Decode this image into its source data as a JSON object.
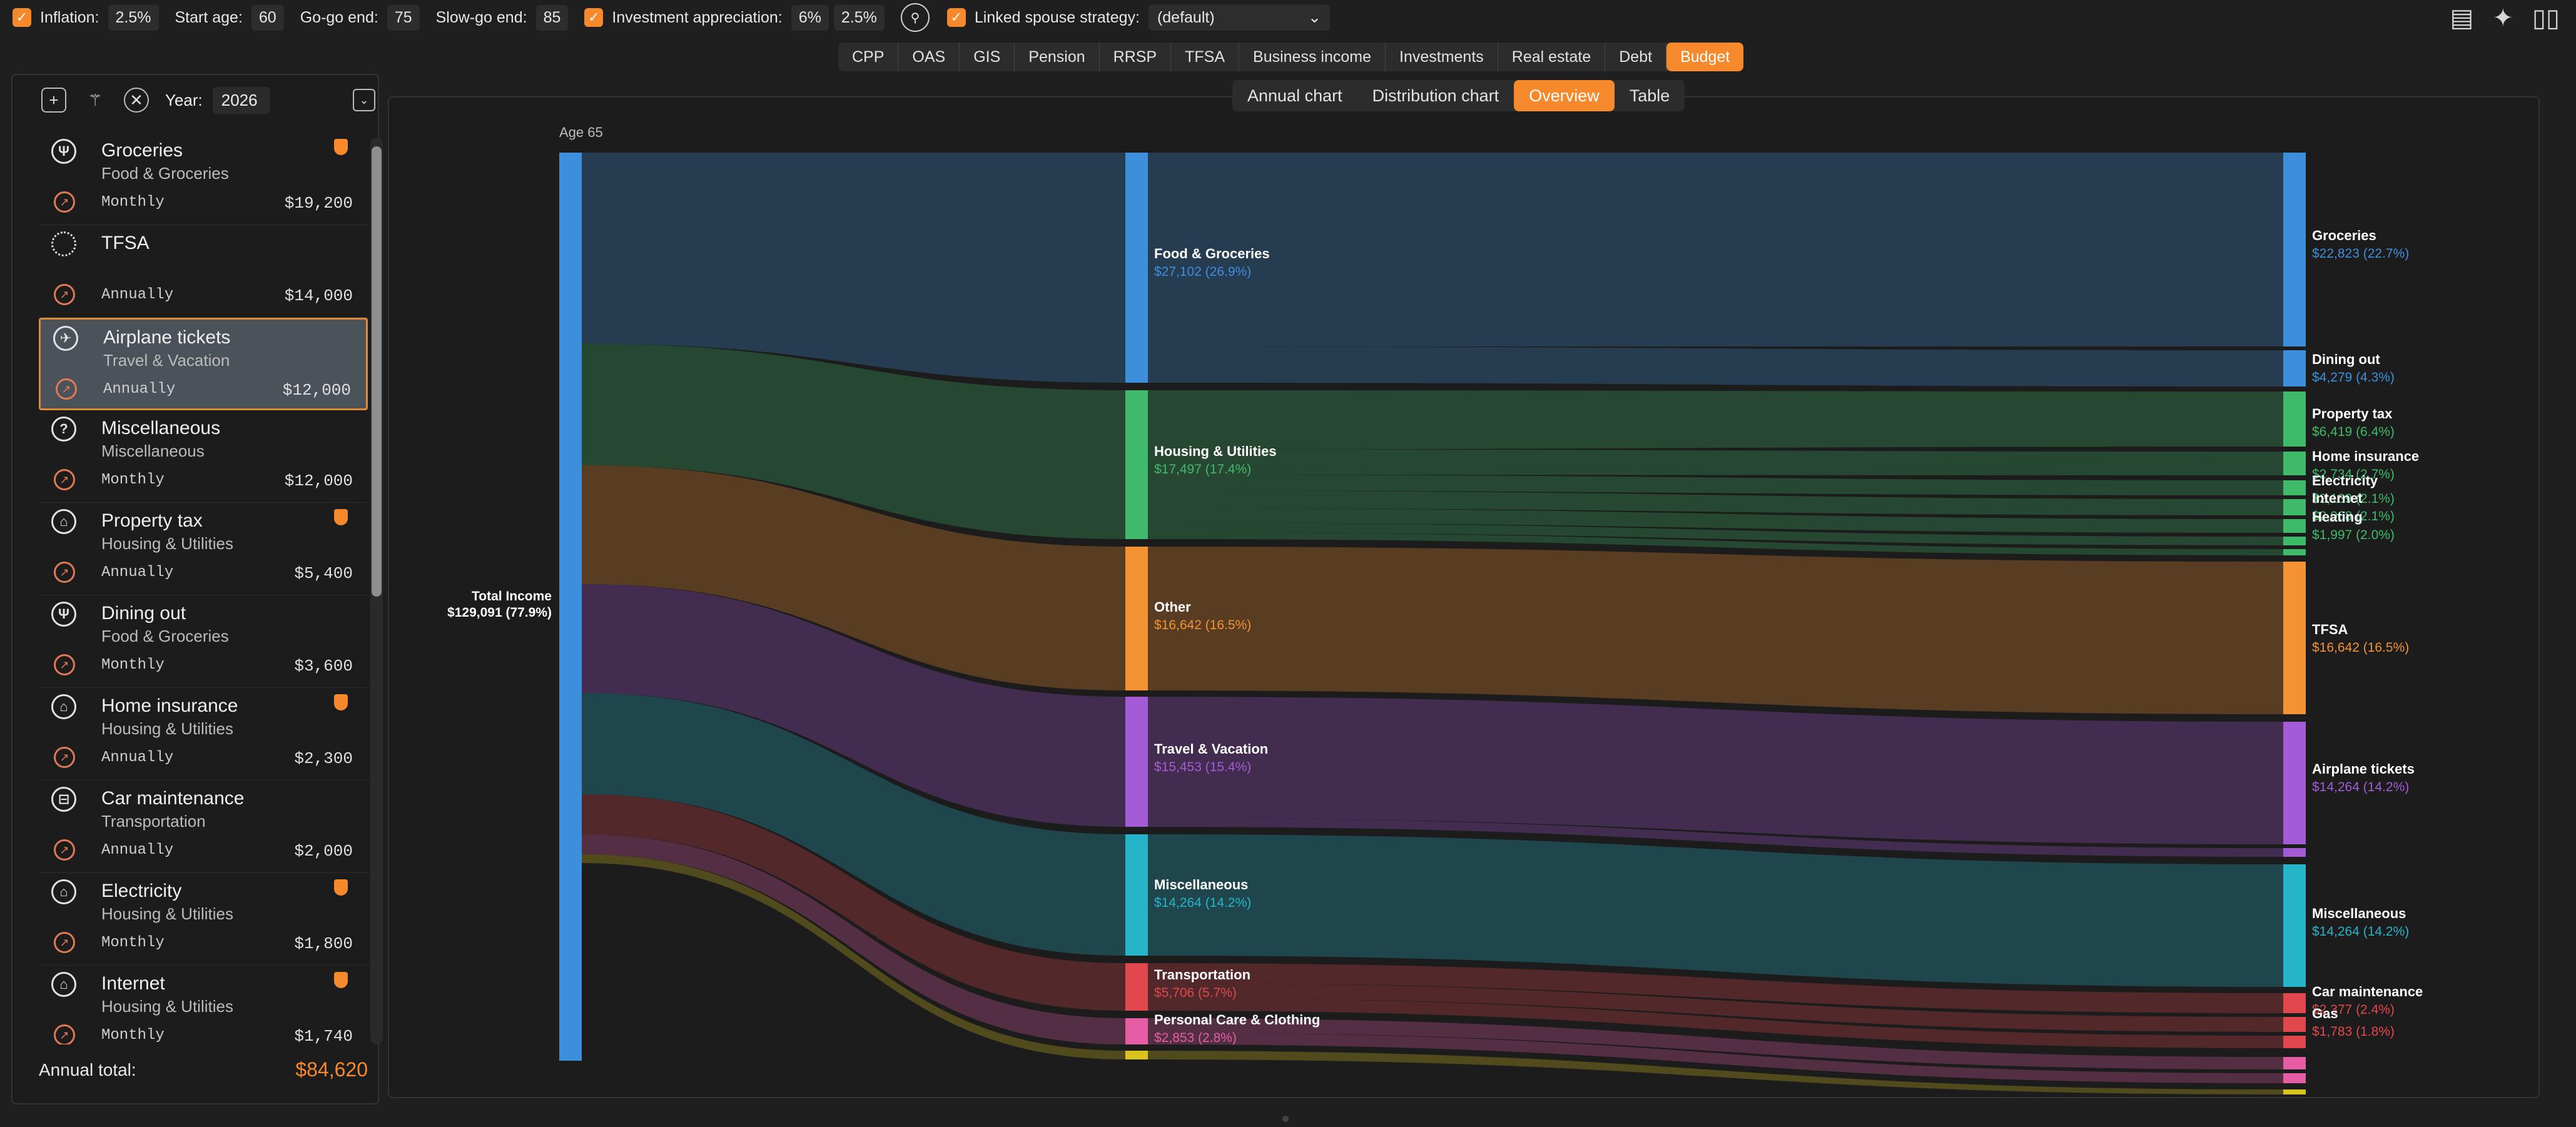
{
  "toolbar": {
    "inflation_label": "Inflation:",
    "inflation_value": "2.5%",
    "start_age_label": "Start age:",
    "start_age_value": "60",
    "gogo_label": "Go-go end:",
    "gogo_value": "75",
    "slowgo_label": "Slow-go end:",
    "slowgo_value": "85",
    "investment_label": "Investment appreciation:",
    "investment_value_1": "6%",
    "investment_value_2": "2.5%",
    "spouse_label": "Linked spouse strategy:",
    "spouse_value": "(default)"
  },
  "tabs": [
    "CPP",
    "OAS",
    "GIS",
    "Pension",
    "RRSP",
    "TFSA",
    "Business income",
    "Investments",
    "Real estate",
    "Debt",
    "Budget"
  ],
  "active_tab": "Budget",
  "left_panel": {
    "year_label": "Year:",
    "year_value": "2026",
    "items": [
      {
        "name": "Groceries",
        "category": "Food & Groceries",
        "frequency": "Monthly",
        "amount": "$19,200",
        "icon": "utensils-icon",
        "badge": true
      },
      {
        "name": "TFSA",
        "category": "",
        "frequency": "Annually",
        "amount": "$14,000",
        "icon": "dotted-circle-icon",
        "badge": false
      },
      {
        "name": "Airplane tickets",
        "category": "Travel & Vacation",
        "frequency": "Annually",
        "amount": "$12,000",
        "icon": "airplane-icon",
        "badge": false,
        "selected": true
      },
      {
        "name": "Miscellaneous",
        "category": "Miscellaneous",
        "frequency": "Monthly",
        "amount": "$12,000",
        "icon": "question-icon",
        "badge": false
      },
      {
        "name": "Property tax",
        "category": "Housing & Utilities",
        "frequency": "Annually",
        "amount": "$5,400",
        "icon": "house-icon",
        "badge": true
      },
      {
        "name": "Dining out",
        "category": "Food & Groceries",
        "frequency": "Monthly",
        "amount": "$3,600",
        "icon": "utensils-icon",
        "badge": false
      },
      {
        "name": "Home insurance",
        "category": "Housing & Utilities",
        "frequency": "Annually",
        "amount": "$2,300",
        "icon": "house-icon",
        "badge": true
      },
      {
        "name": "Car maintenance",
        "category": "Transportation",
        "frequency": "Annually",
        "amount": "$2,000",
        "icon": "car-icon",
        "badge": false
      },
      {
        "name": "Electricity",
        "category": "Housing & Utilities",
        "frequency": "Monthly",
        "amount": "$1,800",
        "icon": "house-icon",
        "badge": true
      },
      {
        "name": "Internet",
        "category": "Housing & Utilities",
        "frequency": "Monthly",
        "amount": "$1,740",
        "icon": "house-icon",
        "badge": true
      }
    ],
    "annual_total_label": "Annual total:",
    "annual_total_value": "$84,620"
  },
  "subtabs": [
    "Annual chart",
    "Distribution chart",
    "Overview",
    "Table"
  ],
  "active_subtab": "Overview",
  "colors": {
    "accent": "#f5892b",
    "income": "#3d8fdc",
    "food": "#3d8fdc",
    "housing": "#3fb96a",
    "other": "#f39233",
    "travel": "#a45bd6",
    "misc": "#26b4c8",
    "transport": "#e0484e",
    "personal": "#e55ea5",
    "yellow": "#d7c21e"
  },
  "chart_data": {
    "type": "sankey",
    "title": "Age 65",
    "source": {
      "label": "Total Income",
      "value": "$129,091 (77.9%)"
    },
    "categories": [
      {
        "label": "Food & Groceries",
        "value": "$27,102 (26.9%)",
        "color": "#3d8fdc"
      },
      {
        "label": "Housing & Utilities",
        "value": "$17,497 (17.4%)",
        "color": "#3fb96a"
      },
      {
        "label": "Other",
        "value": "$16,642 (16.5%)",
        "color": "#f39233"
      },
      {
        "label": "Travel & Vacation",
        "value": "$15,453 (15.4%)",
        "color": "#a45bd6"
      },
      {
        "label": "Miscellaneous",
        "value": "$14,264 (14.2%)",
        "color": "#26b4c8"
      },
      {
        "label": "Transportation",
        "value": "$5,706 (5.7%)",
        "color": "#e0484e"
      },
      {
        "label": "Personal Care & Clothing",
        "value": "$2,853 (2.8%)",
        "color": "#e55ea5"
      },
      {
        "label": "",
        "value": "",
        "color": "#d7c21e"
      }
    ],
    "targets": [
      {
        "label": "Groceries",
        "value": "$22,823 (22.7%)",
        "color": "#3d8fdc"
      },
      {
        "label": "Dining out",
        "value": "$4,279 (4.3%)",
        "color": "#3d8fdc"
      },
      {
        "label": "Property tax",
        "value": "$6,419 (6.4%)",
        "color": "#3fb96a"
      },
      {
        "label": "Home insurance",
        "value": "$2,734 (2.7%)",
        "color": "#3fb96a"
      },
      {
        "label": "Electricity",
        "value": "$2,139 (2.1%)",
        "color": "#3fb96a"
      },
      {
        "label": "Internet",
        "value": "$2,068 (2.1%)",
        "color": "#3fb96a"
      },
      {
        "label": "Heating",
        "value": "$1,997 (2.0%)",
        "color": "#3fb96a"
      },
      {
        "label": "TFSA",
        "value": "$16,642 (16.5%)",
        "color": "#f39233"
      },
      {
        "label": "Airplane tickets",
        "value": "$14,264 (14.2%)",
        "color": "#a45bd6"
      },
      {
        "label": "Miscellaneous",
        "value": "$14,264 (14.2%)",
        "color": "#26b4c8"
      },
      {
        "label": "Car maintenance",
        "value": "$2,377 (2.4%)",
        "color": "#e0484e"
      },
      {
        "label": "Gas",
        "value": "$1,783 (1.8%)",
        "color": "#e0484e"
      }
    ]
  }
}
